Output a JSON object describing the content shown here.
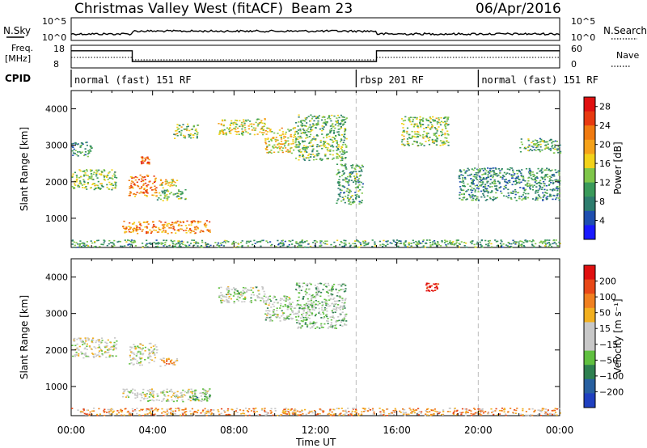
{
  "header": {
    "station": "Christmas Valley West (fitACF)",
    "beam": "Beam 23",
    "date": "06/Apr/2016"
  },
  "strips": {
    "nsky_label": "N.Sky",
    "nsky_ticks": [
      "10^5",
      "10^0"
    ],
    "nsearch_label": "N.Search",
    "nsearch_ticks": [
      "10^5",
      "10^0"
    ],
    "freq_label_1": "Freq.",
    "freq_label_2": "[MHz]",
    "freq_ticks": [
      "18",
      "8"
    ],
    "nave_label": "Nave",
    "nave_ticks": [
      "60",
      "0"
    ],
    "cpid_label": "CPID",
    "cpid_segments": [
      {
        "label": "normal (fast) 151 RF",
        "start_h": 0,
        "end_h": 14
      },
      {
        "label": "rbsp 201 RF",
        "start_h": 14,
        "end_h": 20
      },
      {
        "label": "normal (fast) 151 RF",
        "start_h": 20,
        "end_h": 24
      }
    ],
    "freq_profile": [
      {
        "from_h": 0,
        "to_h": 3,
        "mhz": 16
      },
      {
        "from_h": 3,
        "to_h": 15,
        "mhz": 10.5
      },
      {
        "from_h": 15,
        "to_h": 24,
        "mhz": 16
      }
    ]
  },
  "chart_data": [
    {
      "type": "heatmap",
      "name": "power",
      "ylabel": "Slant Range [km]",
      "xlabel": "Time UT",
      "xlim": [
        0,
        24
      ],
      "ylim": [
        200,
        4500
      ],
      "x_ticks": [
        "00:00",
        "04:00",
        "08:00",
        "12:00",
        "16:00",
        "20:00",
        "00:00"
      ],
      "y_ticks": [
        1000,
        2000,
        3000,
        4000
      ],
      "colorbar": {
        "label": "Power [dB]",
        "ticks": [
          "4",
          "8",
          "12",
          "16",
          "20",
          "24",
          "28"
        ],
        "colors": [
          "#1a1aff",
          "#1f4fb0",
          "#2e7d6e",
          "#3a9a5a",
          "#7fc64a",
          "#f2d21a",
          "#f5a21a",
          "#f07a10",
          "#e83a10",
          "#e01010"
        ]
      },
      "regions": [
        {
          "t0": 0.0,
          "t1": 2.2,
          "r0": 1800,
          "r1": 2350,
          "level": 0.45
        },
        {
          "t0": 0.0,
          "t1": 1.0,
          "r0": 2700,
          "r1": 3100,
          "level": 0.3
        },
        {
          "t0": 2.8,
          "t1": 4.2,
          "r0": 1600,
          "r1": 2200,
          "level": 0.75
        },
        {
          "t0": 3.4,
          "t1": 3.8,
          "r0": 2500,
          "r1": 2700,
          "level": 0.8
        },
        {
          "t0": 4.3,
          "t1": 5.2,
          "r0": 1850,
          "r1": 2100,
          "level": 0.55
        },
        {
          "t0": 4.2,
          "t1": 5.6,
          "r0": 1500,
          "r1": 1800,
          "level": 0.4
        },
        {
          "t0": 2.5,
          "t1": 6.8,
          "r0": 600,
          "r1": 950,
          "level": 0.7
        },
        {
          "t0": 5.0,
          "t1": 6.2,
          "r0": 3200,
          "r1": 3600,
          "level": 0.45
        },
        {
          "t0": 7.2,
          "t1": 9.5,
          "r0": 3300,
          "r1": 3750,
          "level": 0.5
        },
        {
          "t0": 9.5,
          "t1": 11.0,
          "r0": 2800,
          "r1": 3500,
          "level": 0.55
        },
        {
          "t0": 11.0,
          "t1": 13.5,
          "r0": 2600,
          "r1": 3850,
          "level": 0.4
        },
        {
          "t0": 13.0,
          "t1": 14.3,
          "r0": 1400,
          "r1": 2500,
          "level": 0.35
        },
        {
          "t0": 16.2,
          "t1": 18.5,
          "r0": 3000,
          "r1": 3800,
          "level": 0.45
        },
        {
          "t0": 19.0,
          "t1": 24.0,
          "r0": 1500,
          "r1": 2400,
          "level": 0.3
        },
        {
          "t0": 22.0,
          "t1": 24.0,
          "r0": 2800,
          "r1": 3200,
          "level": 0.35
        },
        {
          "t0": 0.0,
          "t1": 24.0,
          "r0": 220,
          "r1": 420,
          "level": 0.35
        }
      ]
    },
    {
      "type": "heatmap",
      "name": "velocity",
      "ylabel": "Slant Range [km]",
      "xlabel": "Time UT",
      "xlim": [
        0,
        24
      ],
      "ylim": [
        200,
        4500
      ],
      "x_ticks": [
        "00:00",
        "04:00",
        "08:00",
        "12:00",
        "16:00",
        "20:00",
        "00:00"
      ],
      "y_ticks": [
        1000,
        2000,
        3000,
        4000
      ],
      "colorbar": {
        "label": "Velocity [m s⁻¹]",
        "ticks": [
          "200",
          "100",
          "50",
          "15",
          "−15",
          "−50",
          "−100",
          "−200"
        ],
        "colors": [
          "#2040c0",
          "#2860a0",
          "#2e8050",
          "#60c040",
          "#c8c8c8",
          "#c8c8c8",
          "#f2b020",
          "#f08020",
          "#e84818",
          "#e01010"
        ]
      },
      "regions": [
        {
          "t0": 0.0,
          "t1": 2.2,
          "r0": 1800,
          "r1": 2350,
          "level": 0.5
        },
        {
          "t0": 2.8,
          "t1": 4.2,
          "r0": 1600,
          "r1": 2200,
          "level": 0.5
        },
        {
          "t0": 4.3,
          "t1": 5.2,
          "r0": 1550,
          "r1": 1800,
          "level": 0.65
        },
        {
          "t0": 2.5,
          "t1": 6.8,
          "r0": 600,
          "r1": 950,
          "level": 0.48
        },
        {
          "t0": 5.8,
          "t1": 6.8,
          "r0": 650,
          "r1": 850,
          "level": 0.35
        },
        {
          "t0": 7.2,
          "t1": 9.5,
          "r0": 3300,
          "r1": 3750,
          "level": 0.45
        },
        {
          "t0": 9.5,
          "t1": 11.0,
          "r0": 2800,
          "r1": 3500,
          "level": 0.45
        },
        {
          "t0": 11.0,
          "t1": 13.5,
          "r0": 2600,
          "r1": 3850,
          "level": 0.4
        },
        {
          "t0": 17.4,
          "t1": 18.0,
          "r0": 3600,
          "r1": 3850,
          "level": 0.95
        },
        {
          "t0": 0.0,
          "t1": 24.0,
          "r0": 220,
          "r1": 420,
          "level": 0.7
        }
      ]
    }
  ]
}
